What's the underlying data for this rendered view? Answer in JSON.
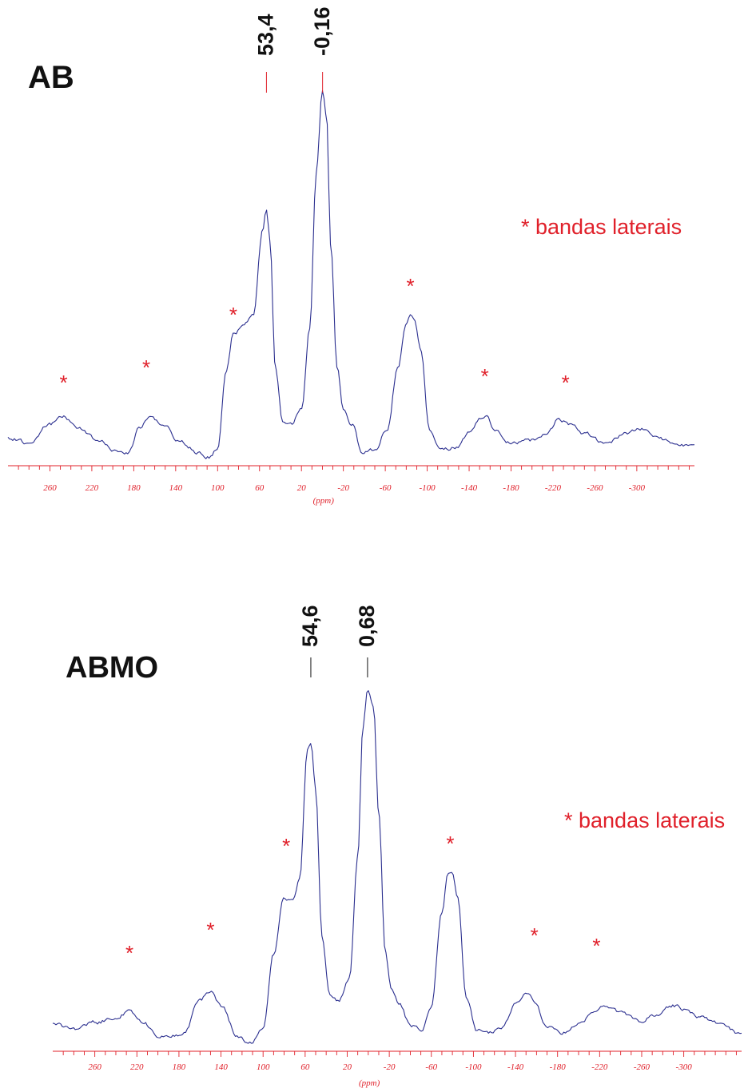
{
  "colors": {
    "spectrum": "#2b2f8f",
    "axis": "#e0202a",
    "text": "#111111",
    "sideband": "#e0202a"
  },
  "chart_data": [
    {
      "type": "line",
      "sample_label": "AB",
      "xlabel": "(ppm)",
      "xlim": [
        300,
        -355
      ],
      "x_reversed": true,
      "ticks": [
        260,
        220,
        180,
        140,
        100,
        60,
        20,
        -20,
        -60,
        -100,
        -140,
        -180,
        -220,
        -260,
        -300
      ],
      "tick_labels": [
        "260",
        "220",
        "180",
        "140",
        "100",
        "60",
        "20",
        "-20",
        "-60",
        "-100",
        "-140",
        "-180",
        "-220",
        "-260",
        "-300"
      ],
      "grid": false,
      "legend_text": "* bandas laterais",
      "legend_position": "right",
      "peak_labels": [
        {
          "x": 53.4,
          "label": "53,4"
        },
        {
          "x": -0.16,
          "label": "-0,16"
        }
      ],
      "sideband_markers": [
        {
          "x": 247,
          "symbol": "*"
        },
        {
          "x": 168,
          "symbol": "*"
        },
        {
          "x": 85,
          "symbol": "*"
        },
        {
          "x": -84,
          "symbol": "*"
        },
        {
          "x": -155,
          "symbol": "*"
        },
        {
          "x": -232,
          "symbol": "*"
        }
      ],
      "series": [
        {
          "profile": [
            [
              300,
              8
            ],
            [
              280,
              6
            ],
            [
              260,
              14
            ],
            [
              247,
              17
            ],
            [
              232,
              12
            ],
            [
              210,
              6
            ],
            [
              200,
              3
            ],
            [
              185,
              2
            ],
            [
              175,
              12
            ],
            [
              165,
              17
            ],
            [
              150,
              13
            ],
            [
              138,
              7
            ],
            [
              118,
              2
            ],
            [
              108,
              0
            ],
            [
              100,
              4
            ],
            [
              92,
              35
            ],
            [
              85,
              52
            ],
            [
              75,
              56
            ],
            [
              66,
              60
            ],
            [
              57,
              96
            ],
            [
              53.4,
              105
            ],
            [
              50,
              92
            ],
            [
              45,
              38
            ],
            [
              38,
              15
            ],
            [
              30,
              14
            ],
            [
              20,
              20
            ],
            [
              12,
              55
            ],
            [
              6,
              120
            ],
            [
              0,
              155
            ],
            [
              -4,
              144
            ],
            [
              -8,
              90
            ],
            [
              -14,
              38
            ],
            [
              -20,
              20
            ],
            [
              -28,
              14
            ],
            [
              -38,
              2
            ],
            [
              -50,
              3
            ],
            [
              -62,
              12
            ],
            [
              -72,
              38
            ],
            [
              -80,
              57
            ],
            [
              -84,
              60
            ],
            [
              -88,
              58
            ],
            [
              -94,
              45
            ],
            [
              -102,
              12
            ],
            [
              -112,
              3
            ],
            [
              -128,
              4
            ],
            [
              -140,
              10
            ],
            [
              -150,
              16
            ],
            [
              -157,
              17
            ],
            [
              -165,
              11
            ],
            [
              -180,
              6
            ],
            [
              -200,
              7
            ],
            [
              -215,
              10
            ],
            [
              -225,
              16
            ],
            [
              -235,
              14
            ],
            [
              -250,
              10
            ],
            [
              -270,
              6
            ],
            [
              -290,
              10
            ],
            [
              -305,
              12
            ],
            [
              -320,
              8
            ],
            [
              -340,
              5
            ],
            [
              -355,
              4
            ]
          ]
        }
      ]
    },
    {
      "type": "line",
      "sample_label": "ABMO",
      "xlabel": "(ppm)",
      "xlim": [
        300,
        -355
      ],
      "x_reversed": true,
      "ticks": [
        260,
        220,
        180,
        140,
        100,
        60,
        20,
        -20,
        -60,
        -100,
        -140,
        -180,
        -220,
        -260,
        -300
      ],
      "tick_labels": [
        "260",
        "220",
        "180",
        "140",
        "100",
        "60",
        "20",
        "-20",
        "-60",
        "-100",
        "-140",
        "-180",
        "-220",
        "-260",
        "-300"
      ],
      "grid": false,
      "legend_text": "* bandas laterais",
      "legend_position": "right",
      "peak_labels": [
        {
          "x": 54.6,
          "label": "54,6"
        },
        {
          "x": 0.68,
          "label": "0,68"
        }
      ],
      "sideband_markers": [
        {
          "x": 227,
          "symbol": "*"
        },
        {
          "x": 150,
          "symbol": "*"
        },
        {
          "x": 78,
          "symbol": "*"
        },
        {
          "x": -78,
          "symbol": "*"
        },
        {
          "x": -158,
          "symbol": "*"
        },
        {
          "x": -217,
          "symbol": "*"
        }
      ],
      "series": [
        {
          "profile": [
            [
              300,
              12
            ],
            [
              280,
              9
            ],
            [
              260,
              13
            ],
            [
              240,
              16
            ],
            [
              228,
              20
            ],
            [
              215,
              14
            ],
            [
              200,
              4
            ],
            [
              190,
              5
            ],
            [
              175,
              6
            ],
            [
              160,
              28
            ],
            [
              150,
              33
            ],
            [
              138,
              22
            ],
            [
              125,
              4
            ],
            [
              112,
              0
            ],
            [
              100,
              8
            ],
            [
              90,
              58
            ],
            [
              80,
              95
            ],
            [
              72,
              92
            ],
            [
              65,
              106
            ],
            [
              58,
              190
            ],
            [
              54.6,
              195
            ],
            [
              50,
              165
            ],
            [
              44,
              70
            ],
            [
              37,
              32
            ],
            [
              28,
              27
            ],
            [
              18,
              42
            ],
            [
              10,
              120
            ],
            [
              5,
              205
            ],
            [
              0.68,
              230
            ],
            [
              -5,
              220
            ],
            [
              -10,
              150
            ],
            [
              -16,
              60
            ],
            [
              -22,
              36
            ],
            [
              -30,
              25
            ],
            [
              -40,
              11
            ],
            [
              -50,
              8
            ],
            [
              -60,
              22
            ],
            [
              -70,
              85
            ],
            [
              -76,
              110
            ],
            [
              -80,
              112
            ],
            [
              -85,
              95
            ],
            [
              -93,
              30
            ],
            [
              -103,
              8
            ],
            [
              -115,
              6
            ],
            [
              -128,
              10
            ],
            [
              -140,
              25
            ],
            [
              -150,
              33
            ],
            [
              -158,
              27
            ],
            [
              -170,
              10
            ],
            [
              -183,
              6
            ],
            [
              -200,
              12
            ],
            [
              -215,
              20
            ],
            [
              -225,
              24
            ],
            [
              -240,
              20
            ],
            [
              -258,
              14
            ],
            [
              -270,
              17
            ],
            [
              -290,
              24
            ],
            [
              -300,
              22
            ],
            [
              -315,
              17
            ],
            [
              -335,
              12
            ],
            [
              -355,
              5
            ]
          ]
        }
      ]
    }
  ]
}
